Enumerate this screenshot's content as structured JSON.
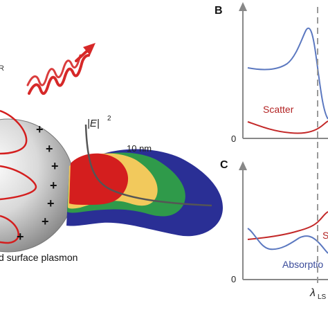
{
  "left_panel": {
    "partial_letter": "R",
    "field_label_main": "|E|",
    "field_label_exp": "2",
    "scale_label": "10 nm",
    "caption": "d surface plasmon",
    "charges": [
      "+",
      "+",
      "+",
      "+",
      "+",
      "+",
      "+"
    ]
  },
  "panel_b": {
    "letter": "B",
    "zero_tick": "0",
    "curve_label": "Scatter"
  },
  "panel_c": {
    "letter": "C",
    "zero_tick": "0",
    "curve_label_cut": "S",
    "absorption_label": "Absorptio",
    "x_marker_label": "λ",
    "x_marker_sub": "LS"
  },
  "colors": {
    "blue_curve": "#5b78c0",
    "red_curve": "#c32828",
    "dash": "#999999",
    "sphere_dark": "#777777",
    "field_red": "#d41e1e",
    "field_yellow": "#f2c95c",
    "field_green": "#2f9a4a",
    "field_navy": "#2a2f95"
  }
}
